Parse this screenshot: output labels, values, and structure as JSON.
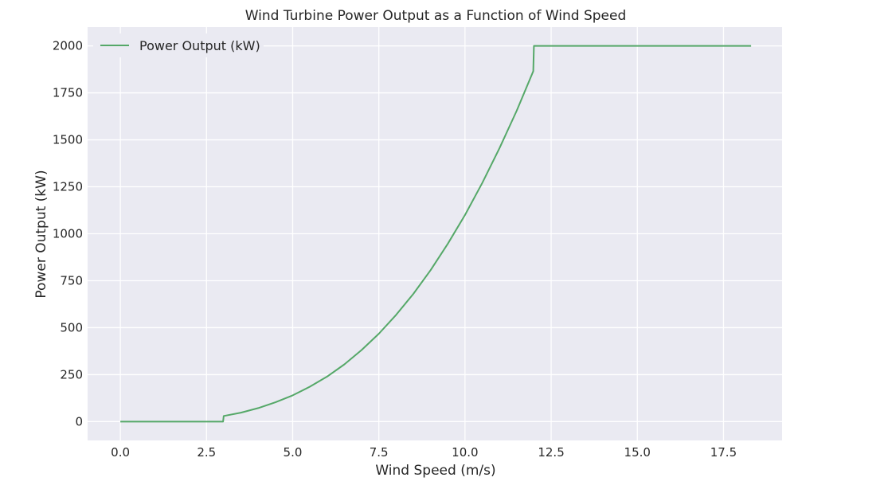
{
  "chart_data": {
    "type": "line",
    "title": "Wind Turbine Power Output as a Function of Wind Speed",
    "xlabel": "Wind Speed (m/s)",
    "ylabel": "Power Output (kW)",
    "xlim": [
      -0.95,
      19.2
    ],
    "ylim": [
      -100,
      2100
    ],
    "xticks": [
      0.0,
      2.5,
      5.0,
      7.5,
      10.0,
      12.5,
      15.0,
      17.5
    ],
    "xtick_labels": [
      "0.0",
      "2.5",
      "5.0",
      "7.5",
      "10.0",
      "12.5",
      "15.0",
      "17.5"
    ],
    "yticks": [
      0,
      250,
      500,
      750,
      1000,
      1250,
      1500,
      1750,
      2000
    ],
    "ytick_labels": [
      "0",
      "250",
      "500",
      "750",
      "1000",
      "1250",
      "1500",
      "1750",
      "2000"
    ],
    "grid": true,
    "legend_position": "top-left",
    "colors": {
      "background": "#eaeaf2",
      "grid": "#ffffff",
      "line": "#55a868"
    },
    "series": [
      {
        "name": "Power Output (kW)",
        "x": [
          0.0,
          2.98,
          3.0,
          3.5,
          4.0,
          4.5,
          5.0,
          5.5,
          6.0,
          6.5,
          7.0,
          7.5,
          8.0,
          8.5,
          9.0,
          9.5,
          10.0,
          10.5,
          11.0,
          11.5,
          11.98,
          12.0,
          13.0,
          14.0,
          15.0,
          16.0,
          17.0,
          18.3
        ],
        "y": [
          0,
          0,
          30,
          48,
          72,
          103,
          140,
          186,
          240,
          305,
          381,
          468,
          568,
          680,
          806,
          946,
          1100,
          1270,
          1455,
          1655,
          1865,
          2000,
          2000,
          2000,
          2000,
          2000,
          2000,
          2000
        ]
      }
    ]
  }
}
